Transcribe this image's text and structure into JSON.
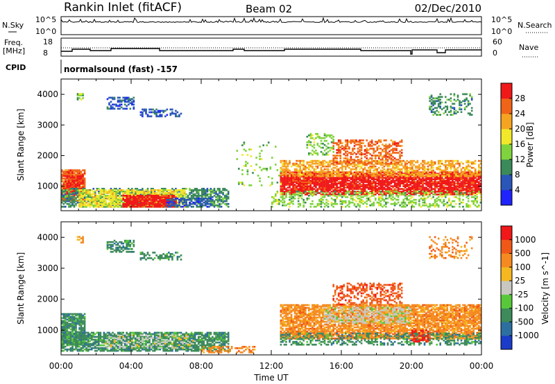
{
  "header": {
    "title": "Rankin Inlet (fitACF)",
    "beam": "Beam 02",
    "date": "02/Dec/2010"
  },
  "status_panels": {
    "nsky_label": "N.Sky",
    "nsearch_label": "N.Search",
    "count_ticks_left": [
      "10^5",
      "10^0"
    ],
    "count_ticks_right": [
      "10^5",
      "10^0"
    ],
    "freq_label_1": "Freq.",
    "freq_label_2": "[MHz]",
    "freq_ticks": [
      "18",
      "8"
    ],
    "nave_label": "Nave",
    "nave_ticks": [
      "60",
      "0"
    ],
    "cpid_label": "CPID",
    "cpid_text": "normalsound (fast) -157"
  },
  "chart_data": [
    {
      "type": "heatmap",
      "name": "power",
      "xlabel": "Time UT",
      "ylabel": "Slant Range [km]",
      "x_ticks": [
        "00:00",
        "04:00",
        "08:00",
        "12:00",
        "16:00",
        "20:00",
        "00:00"
      ],
      "x_range_hours": [
        0,
        24
      ],
      "y_ticks": [
        1000,
        2000,
        3000,
        4000
      ],
      "y_range": [
        200,
        4500
      ],
      "colorbar": {
        "label": "Power [dB]",
        "ticks": [
          "4",
          "8",
          "12",
          "16",
          "20",
          "24",
          "28"
        ],
        "colors": [
          "#1f24ff",
          "#2a56b8",
          "#3b8a5a",
          "#7fd33c",
          "#f2e82a",
          "#f5a422",
          "#f06418",
          "#f01818"
        ]
      },
      "regions": [
        {
          "t0": 0.0,
          "t1": 1.4,
          "r0": 500,
          "r1": 1500,
          "level": 6,
          "density": 0.85
        },
        {
          "t0": 0.2,
          "t1": 1.3,
          "r0": 800,
          "r1": 1300,
          "level": 7,
          "density": 0.7
        },
        {
          "t0": 0.0,
          "t1": 9.5,
          "r0": 300,
          "r1": 900,
          "level": 2,
          "density": 0.6
        },
        {
          "t0": 1.0,
          "t1": 7.0,
          "r0": 300,
          "r1": 850,
          "level": 4,
          "density": 0.7
        },
        {
          "t0": 3.5,
          "t1": 6.5,
          "r0": 300,
          "r1": 700,
          "level": 7,
          "density": 0.9
        },
        {
          "t0": 6.0,
          "t1": 8.5,
          "r0": 300,
          "r1": 600,
          "level": 1,
          "density": 0.5
        },
        {
          "t0": 2.6,
          "t1": 4.2,
          "r0": 3500,
          "r1": 3900,
          "level": 1,
          "density": 0.55
        },
        {
          "t0": 4.5,
          "t1": 6.8,
          "r0": 3250,
          "r1": 3500,
          "level": 1,
          "density": 0.4
        },
        {
          "t0": 0.9,
          "t1": 1.3,
          "r0": 3800,
          "r1": 4000,
          "level": 3,
          "density": 0.6
        },
        {
          "t0": 12.5,
          "t1": 24.0,
          "r0": 700,
          "r1": 1450,
          "level": 7,
          "density": 0.85
        },
        {
          "t0": 12.5,
          "t1": 24.0,
          "r0": 1300,
          "r1": 1800,
          "level": 5,
          "density": 0.55
        },
        {
          "t0": 12.0,
          "t1": 24.0,
          "r0": 300,
          "r1": 800,
          "level": 3,
          "density": 0.35
        },
        {
          "t0": 15.5,
          "t1": 19.5,
          "r0": 1700,
          "r1": 2500,
          "level": 6,
          "density": 0.45
        },
        {
          "t0": 14.0,
          "t1": 15.5,
          "r0": 2000,
          "r1": 2700,
          "level": 3,
          "density": 0.3
        },
        {
          "t0": 21.0,
          "t1": 23.5,
          "r0": 3300,
          "r1": 4000,
          "level": 2,
          "density": 0.3
        },
        {
          "t0": 10.0,
          "t1": 12.5,
          "r0": 1000,
          "r1": 2400,
          "level": 3,
          "density": 0.08
        }
      ]
    },
    {
      "type": "heatmap",
      "name": "velocity",
      "xlabel": "Time UT",
      "ylabel": "Slant Range [km]",
      "x_ticks": [
        "00:00",
        "04:00",
        "08:00",
        "12:00",
        "16:00",
        "20:00",
        "00:00"
      ],
      "x_range_hours": [
        0,
        24
      ],
      "y_ticks": [
        1000,
        2000,
        3000,
        4000
      ],
      "y_range": [
        200,
        4500
      ],
      "colorbar": {
        "label": "Velocity [m s^-1]",
        "ticks": [
          "1000",
          "500",
          "100",
          "25",
          "-25",
          "-100",
          "-500",
          "-1000"
        ],
        "colors": [
          "#1a3cc8",
          "#2d6fa0",
          "#3d8a5a",
          "#58c83a",
          "#c8c8c0",
          "#f5b820",
          "#f58a20",
          "#f05818",
          "#f01818"
        ]
      },
      "regions": [
        {
          "t0": 0.0,
          "t1": 1.4,
          "r0": 500,
          "r1": 1500,
          "level": 2,
          "density": 0.85
        },
        {
          "t0": 0.0,
          "t1": 9.5,
          "r0": 300,
          "r1": 900,
          "level": 2,
          "density": 0.75
        },
        {
          "t0": 2.5,
          "t1": 7.5,
          "r0": 400,
          "r1": 850,
          "level": 4,
          "density": 0.25
        },
        {
          "t0": 8.0,
          "t1": 11.0,
          "r0": 250,
          "r1": 450,
          "level": 6,
          "density": 0.4
        },
        {
          "t0": 2.6,
          "t1": 4.2,
          "r0": 3500,
          "r1": 3900,
          "level": 2,
          "density": 0.55
        },
        {
          "t0": 4.5,
          "t1": 6.8,
          "r0": 3250,
          "r1": 3500,
          "level": 2,
          "density": 0.4
        },
        {
          "t0": 0.9,
          "t1": 1.3,
          "r0": 3800,
          "r1": 4000,
          "level": 6,
          "density": 0.6
        },
        {
          "t0": 12.5,
          "t1": 24.0,
          "r0": 700,
          "r1": 1800,
          "level": 6,
          "density": 0.8
        },
        {
          "t0": 15.0,
          "t1": 20.0,
          "r0": 1200,
          "r1": 1700,
          "level": 4,
          "density": 0.5
        },
        {
          "t0": 12.5,
          "t1": 24.0,
          "r0": 500,
          "r1": 900,
          "level": 2,
          "density": 0.4
        },
        {
          "t0": 15.5,
          "t1": 19.5,
          "r0": 1800,
          "r1": 2500,
          "level": 7,
          "density": 0.4
        },
        {
          "t0": 20.0,
          "t1": 21.0,
          "r0": 600,
          "r1": 1000,
          "level": 8,
          "density": 0.5
        },
        {
          "t0": 21.0,
          "t1": 23.5,
          "r0": 3300,
          "r1": 4000,
          "level": 6,
          "density": 0.25
        }
      ]
    }
  ]
}
